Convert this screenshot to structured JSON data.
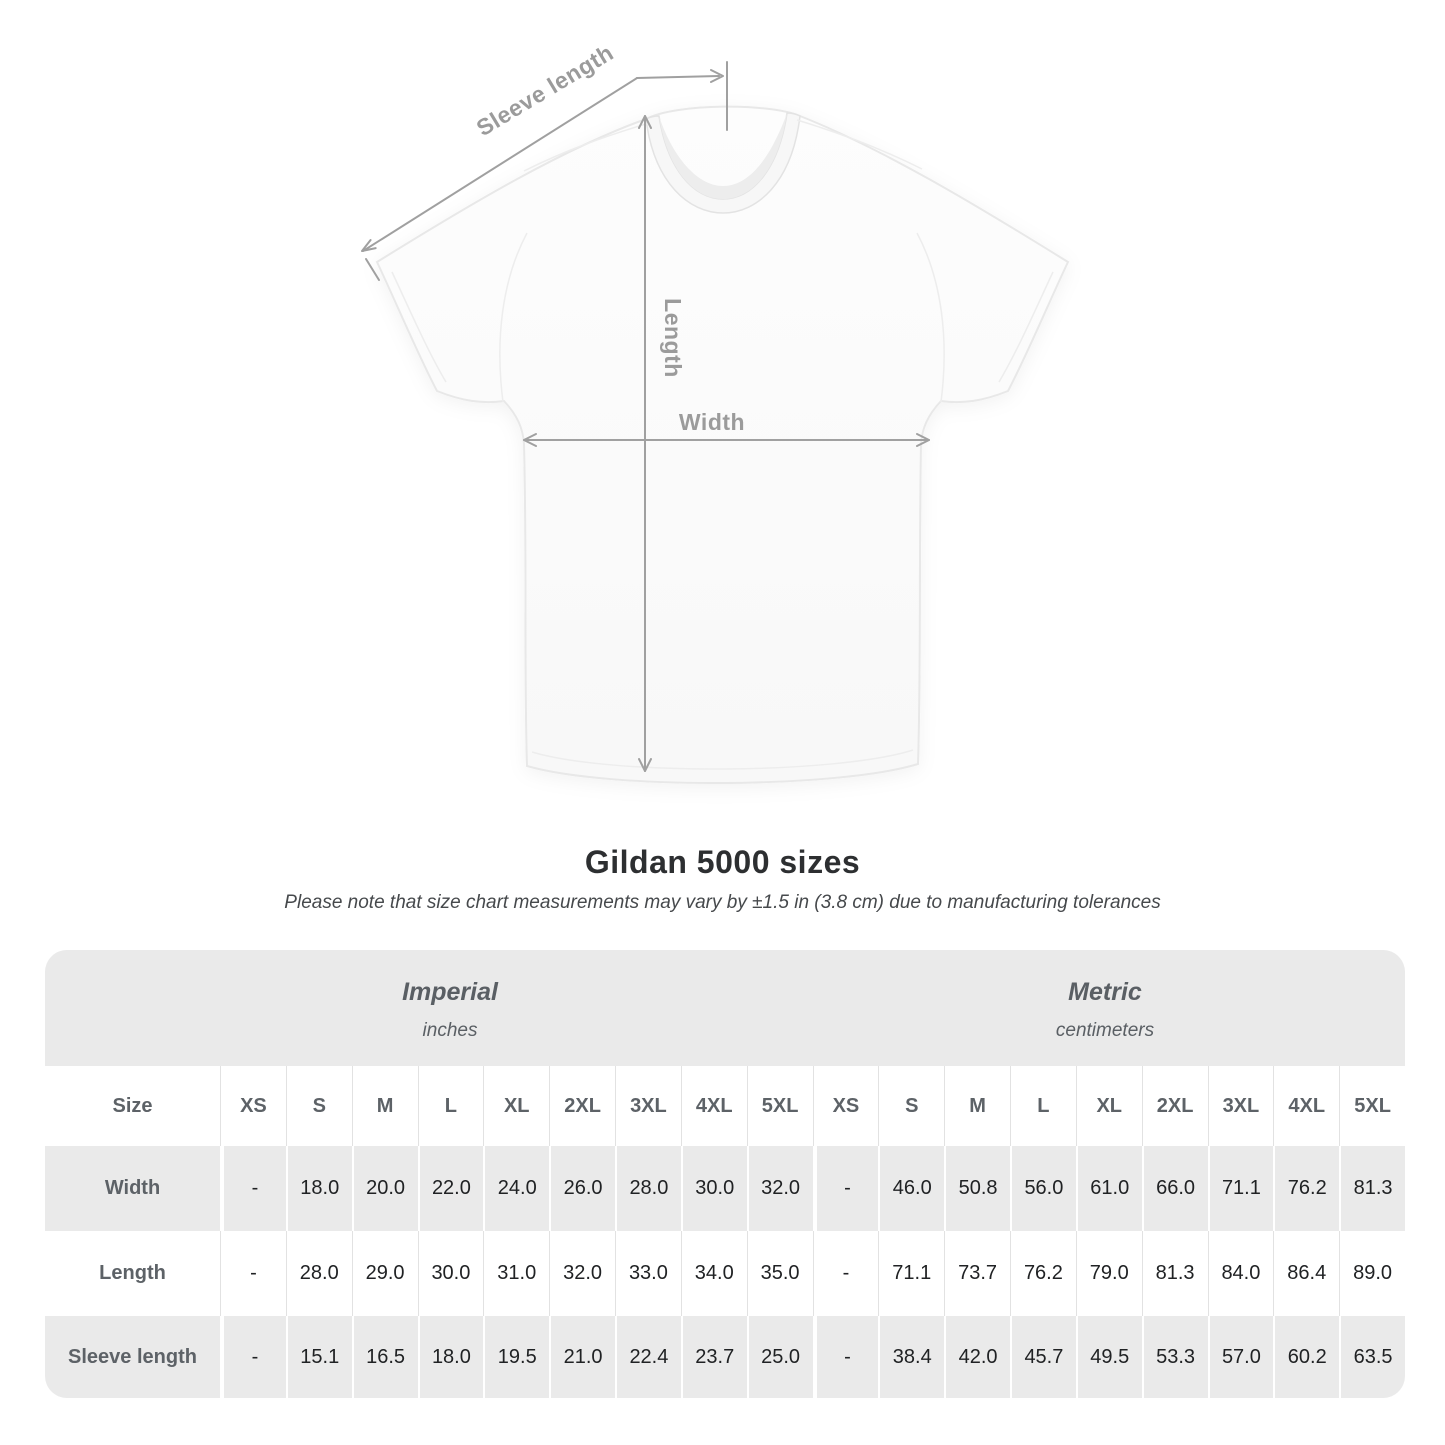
{
  "diagram": {
    "labels": {
      "sleeve_length": "Sleeve length",
      "length": "Length",
      "width": "Width"
    },
    "colors": {
      "annotation_line": "#a0a0a0",
      "annotation_text": "#9b9b9b",
      "shirt_outline": "#e8e8e8"
    }
  },
  "size_chart": {
    "title": "Gildan 5000 sizes",
    "subtitle": "Please note that size chart measurements may vary by ±1.5 in (3.8 cm) due to manufacturing tolerances",
    "unit_groups": [
      {
        "name": "Imperial",
        "unit": "inches"
      },
      {
        "name": "Metric",
        "unit": "centimeters"
      }
    ],
    "size_column_label": "Size",
    "size_headers": [
      "XS",
      "S",
      "M",
      "L",
      "XL",
      "2XL",
      "3XL",
      "4XL",
      "5XL"
    ],
    "rows": [
      {
        "label": "Width",
        "imperial": [
          "-",
          "18.0",
          "20.0",
          "22.0",
          "24.0",
          "26.0",
          "28.0",
          "30.0",
          "32.0"
        ],
        "metric": [
          "-",
          "46.0",
          "50.8",
          "56.0",
          "61.0",
          "66.0",
          "71.1",
          "76.2",
          "81.3"
        ]
      },
      {
        "label": "Length",
        "imperial": [
          "-",
          "28.0",
          "29.0",
          "30.0",
          "31.0",
          "32.0",
          "33.0",
          "34.0",
          "35.0"
        ],
        "metric": [
          "-",
          "71.1",
          "73.7",
          "76.2",
          "79.0",
          "81.3",
          "84.0",
          "86.4",
          "89.0"
        ]
      },
      {
        "label": "Sleeve length",
        "imperial": [
          "-",
          "15.1",
          "16.5",
          "18.0",
          "19.5",
          "21.0",
          "22.4",
          "23.7",
          "25.0"
        ],
        "metric": [
          "-",
          "38.4",
          "42.0",
          "45.7",
          "49.5",
          "53.3",
          "57.0",
          "60.2",
          "63.5"
        ]
      }
    ],
    "colors": {
      "container_bg": "#eaeaea",
      "white_row_bg": "#ffffff",
      "header_text": "#5d6267",
      "value_text": "#202224"
    }
  }
}
